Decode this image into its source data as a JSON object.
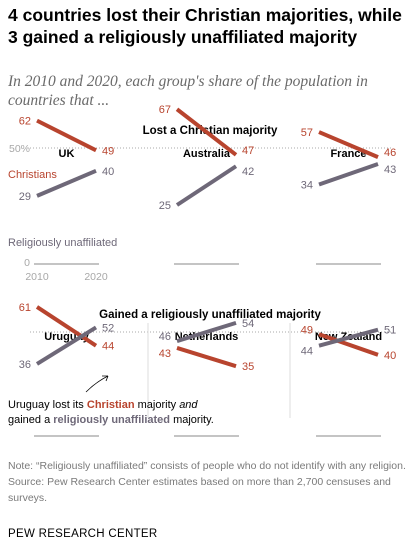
{
  "title": "4 countries lost their Christian majorities, while 3 gained a religiously unaffiliated majority",
  "subtitle": "In 2010 and 2020, each group's share of the population in countries that ...",
  "note": "Note: “Religiously unaffiliated” consists of people who do not identify with any religion.",
  "source": "Source: Pew Research Center estimates based on more than 2,700 censuses and surveys.",
  "brand": "PEW RESEARCH CENTER",
  "colors": {
    "christians": "#b8442e",
    "unaffiliated": "#6e6878",
    "axis": "#b5b5b5",
    "text": "#000000"
  },
  "chart_data": {
    "type": "line",
    "x": [
      2010,
      2020
    ],
    "ylim": [
      0,
      70
    ],
    "yticks": [
      0,
      25,
      50
    ],
    "groups": [
      {
        "label": "Lost a Christian majority"
      },
      {
        "label": "Gained a religiously unaffiliated majority"
      }
    ],
    "series_names": {
      "christians": "Christians",
      "unaffiliated": "Religiously unaffiliated"
    },
    "panels": [
      {
        "country": "UK",
        "group": 0,
        "christians": [
          62,
          49
        ],
        "unaffiliated": [
          29,
          40
        ]
      },
      {
        "country": "Australia",
        "group": 0,
        "christians": [
          67,
          47
        ],
        "unaffiliated": [
          25,
          42
        ]
      },
      {
        "country": "France",
        "group": 0,
        "christians": [
          57,
          46
        ],
        "unaffiliated": [
          34,
          43
        ]
      },
      {
        "country": "Uruguay",
        "group": 1,
        "christians": [
          61,
          44
        ],
        "unaffiliated": [
          36,
          52
        ]
      },
      {
        "country": "Netherlands",
        "group": 1,
        "christians": [
          43,
          35
        ],
        "unaffiliated": [
          46,
          54
        ]
      },
      {
        "country": "New Zealand",
        "group": 1,
        "christians": [
          49,
          40
        ],
        "unaffiliated": [
          44,
          51
        ]
      }
    ],
    "annotation": {
      "parts": [
        "Uruguay lost its ",
        "Christian",
        " majority ",
        "and",
        " gained a ",
        "religiously unaffiliated",
        " majority."
      ]
    }
  }
}
